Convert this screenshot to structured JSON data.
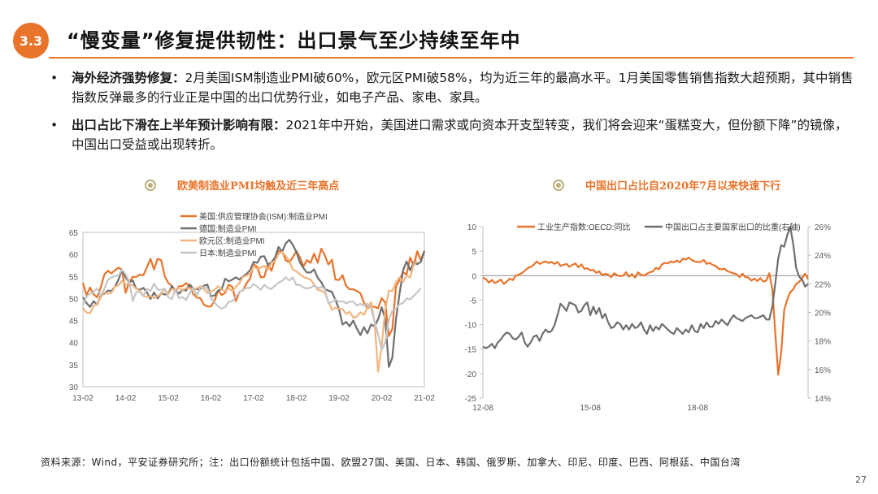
{
  "header": {
    "section": "3.3",
    "title": "“慢变量”修复提供韧性：出口景气至少持续至年中"
  },
  "bullets": [
    {
      "head": "海外经济强势修复：",
      "text": "2月美国ISM制造业PMI破60%，欧元区PMI破58%，均为近三年的最高水平。1月美国零售销售指数大超预期，其中销售指数反弹最多的行业正是中国的出口优势行业，如电子产品、家电、家具。"
    },
    {
      "head": "出口占比下滑在上半年预计影响有限：",
      "text": "2021年中开始，美国进口需求或向资本开支型转变，我们将会迎来“蛋糕变大，但份额下降”的镜像，中国出口受益或出现转折。"
    }
  ],
  "chart_data": [
    {
      "type": "line",
      "title": "欧美制造业PMI均触及近三年高点",
      "x_tick_labels": [
        "13-02",
        "14-02",
        "15-02",
        "16-02",
        "17-02",
        "18-02",
        "19-02",
        "20-02",
        "21-02"
      ],
      "x_start": "2013-02",
      "x_end": "2021-02",
      "ylim": [
        30,
        65
      ],
      "y_ticks": [
        30,
        35,
        40,
        45,
        50,
        55,
        60,
        65
      ],
      "legend_position": "top-left",
      "grid": false,
      "series": [
        {
          "name": "美国:供应管理协会(ISM):制造业PMI",
          "color": "#e8732a",
          "width": 2.2,
          "values": [
            53.5,
            50.8,
            52.5,
            51.0,
            50.3,
            52.5,
            55.4,
            56.3,
            55.7,
            56.4,
            57.0,
            56.5,
            51.3,
            53.7,
            54.9,
            54.9,
            55.4,
            55.3,
            57.1,
            59.0,
            56.6,
            59.0,
            58.7,
            55.1,
            53.5,
            52.9,
            51.5,
            52.8,
            52.8,
            53.5,
            52.7,
            51.1,
            50.2,
            50.1,
            48.6,
            48.2,
            48.2,
            49.5,
            51.8,
            50.8,
            51.3,
            53.2,
            52.6,
            49.4,
            51.5,
            51.9,
            53.5,
            54.5,
            57.7,
            57.2,
            54.8,
            54.9,
            57.8,
            56.3,
            58.8,
            60.8,
            60.8,
            58.7,
            58.2,
            59.3,
            60.8,
            59.3,
            57.3,
            58.7,
            58.1,
            60.2,
            58.1,
            61.3,
            59.8,
            57.7,
            58.8,
            54.3,
            54.2,
            55.3,
            52.8,
            52.1,
            52.1,
            51.7,
            51.2,
            49.1,
            47.8,
            48.3,
            48.1,
            47.8,
            50.1,
            49.1,
            41.5,
            43.1,
            52.6,
            54.2,
            56.0,
            55.4,
            59.3,
            57.5,
            60.7,
            58.7,
            60.8
          ]
        },
        {
          "name": "德国:制造业PMI",
          "color": "#6e6e6e",
          "width": 2.2,
          "values": [
            50.3,
            49.0,
            48.1,
            49.4,
            48.6,
            50.7,
            51.1,
            51.8,
            51.7,
            52.7,
            54.3,
            56.5,
            54.8,
            53.7,
            54.1,
            52.2,
            52.0,
            52.4,
            51.4,
            49.9,
            51.4,
            50.0,
            51.2,
            50.9,
            51.1,
            52.8,
            51.9,
            51.1,
            52.0,
            51.8,
            53.2,
            52.3,
            52.1,
            52.1,
            52.9,
            53.2,
            50.5,
            50.7,
            51.8,
            52.1,
            54.5,
            53.9,
            54.3,
            54.8,
            54.3,
            55.0,
            55.6,
            56.4,
            58.3,
            58.1,
            59.5,
            59.6,
            57.7,
            58.2,
            59.3,
            61.7,
            60.6,
            62.5,
            63.3,
            62.2,
            60.6,
            58.2,
            56.9,
            55.9,
            55.9,
            56.6,
            54.7,
            53.7,
            52.2,
            51.8,
            51.5,
            49.7,
            47.6,
            44.1,
            44.7,
            43.7,
            45.0,
            43.2,
            41.7,
            43.5,
            42.1,
            44.1,
            43.7,
            45.3,
            48.0,
            45.4,
            34.5,
            36.6,
            45.2,
            51.0,
            56.4,
            58.4,
            56.4,
            58.2,
            57.8,
            58.3,
            60.7
          ]
        },
        {
          "name": "欧元区:制造业PMI",
          "color": "#f3b47d",
          "width": 2.2,
          "values": [
            47.9,
            46.8,
            46.7,
            48.3,
            48.8,
            50.3,
            51.4,
            51.1,
            51.3,
            52.7,
            53.0,
            54.0,
            53.2,
            53.4,
            53.0,
            52.2,
            51.8,
            50.7,
            50.3,
            50.6,
            50.1,
            50.6,
            51.0,
            52.2,
            51.0,
            52.2,
            52.0,
            52.5,
            51.8,
            52.4,
            52.3,
            52.0,
            52.3,
            52.8,
            52.2,
            51.2,
            51.6,
            52.0,
            52.8,
            52.0,
            51.7,
            52.3,
            51.7,
            52.6,
            53.5,
            54.9,
            55.2,
            55.6,
            57.4,
            56.7,
            57.0,
            57.4,
            56.6,
            58.1,
            58.5,
            60.1,
            60.6,
            59.6,
            58.6,
            56.6,
            56.2,
            55.5,
            54.9,
            54.6,
            54.3,
            53.2,
            52.0,
            51.8,
            51.4,
            49.3,
            47.5,
            47.9,
            47.7,
            47.6,
            46.5,
            47.0,
            45.7,
            45.9,
            46.9,
            46.3,
            47.9,
            49.2,
            44.5,
            33.4,
            39.4,
            47.4,
            51.8,
            51.7,
            53.7,
            54.8,
            53.8,
            55.2,
            54.8,
            57.9,
            58.5
          ]
        },
        {
          "name": "日本:制造业PMI",
          "color": "#c6c6c6",
          "width": 2.2,
          "values": [
            48.5,
            50.4,
            51.1,
            51.5,
            52.3,
            50.7,
            52.2,
            54.2,
            54.8,
            55.1,
            55.2,
            56.6,
            55.5,
            53.9,
            49.4,
            51.5,
            51.5,
            50.5,
            52.2,
            51.7,
            53.4,
            52.0,
            52.0,
            52.2,
            50.3,
            49.9,
            52.0,
            50.1,
            50.3,
            49.7,
            51.2,
            52.5,
            50.6,
            52.4,
            52.6,
            52.3,
            50.1,
            49.1,
            48.2,
            47.7,
            48.1,
            49.3,
            49.4,
            50.4,
            51.4,
            52.0,
            52.4,
            52.4,
            53.3,
            52.7,
            52.0,
            53.1,
            52.4,
            52.2,
            52.9,
            53.6,
            54.0,
            54.8,
            54.1,
            54.8,
            53.1,
            53.1,
            52.5,
            52.3,
            52.5,
            52.9,
            52.4,
            52.6,
            52.2,
            48.9,
            49.2,
            49.8,
            49.3,
            49.4,
            48.9,
            49.3,
            49.3,
            48.4,
            48.8,
            48.4,
            48.8,
            47.8,
            44.8,
            41.9,
            38.4,
            40.1,
            45.2,
            47.2,
            47.7,
            48.7,
            49.0,
            50.0,
            49.8,
            50.6,
            51.4,
            52.4
          ]
        }
      ]
    },
    {
      "type": "line",
      "title": "中国出口占比自2020年7月以来快速下行",
      "x_tick_labels": [
        "12-08",
        "15-08",
        "18-08"
      ],
      "x_start": "2012-08",
      "x_end": "2021-01",
      "ylim_left": [
        -25,
        10
      ],
      "y_ticks_left": [
        -25,
        -20,
        -15,
        -10,
        -5,
        0,
        5,
        10
      ],
      "ylim_right": [
        14,
        26
      ],
      "y_ticks_right": [
        "14%",
        "16%",
        "18%",
        "20%",
        "22%",
        "24%",
        "26%"
      ],
      "legend_position": "top",
      "grid": false,
      "series": [
        {
          "name": "工业生产指数:OECD:同比",
          "axis": "left",
          "color": "#e8732a",
          "width": 2.2,
          "values": [
            -0.4,
            -0.7,
            -1.4,
            -0.9,
            -1.5,
            -1.2,
            -0.8,
            -1.7,
            -1.2,
            -0.6,
            -0.9,
            0.0,
            0.2,
            0.5,
            1.0,
            1.5,
            1.8,
            2.2,
            2.9,
            2.4,
            2.7,
            2.9,
            2.6,
            2.8,
            2.4,
            2.8,
            2.0,
            2.2,
            2.4,
            1.8,
            2.2,
            2.5,
            1.7,
            2.3,
            1.4,
            1.5,
            1.1,
            1.2,
            0.6,
            0.9,
            0.1,
            0.4,
            0.2,
            -0.3,
            0.5,
            0.1,
            -0.1,
            0.0,
            0.7,
            -0.2,
            0.3,
            -0.4,
            0.7,
            0.2,
            0.0,
            0.4,
            0.7,
            0.9,
            1.6,
            1.3,
            2.3,
            2.6,
            2.5,
            2.9,
            2.7,
            3.1,
            2.7,
            3.5,
            3.3,
            3.7,
            3.2,
            2.9,
            2.8,
            2.8,
            3.2,
            2.4,
            2.6,
            2.2,
            2.0,
            1.4,
            1.3,
            1.4,
            0.9,
            0.7,
            0.5,
            0.3,
            -0.3,
            0.4,
            -0.3,
            -0.4,
            -1.0,
            -0.6,
            -1.1,
            -0.5,
            -1.2,
            -1.0,
            0.5,
            -2.7,
            -11.6,
            -20.2,
            -15.6,
            -7.0,
            -4.9,
            -3.4,
            -2.8,
            -1.7,
            -1.3,
            -0.5,
            0.4,
            -0.7
          ]
        },
        {
          "name": "中国出口占主要国家出口的比重(右轴)",
          "axis": "right",
          "color": "#6e6e6e",
          "width": 2.2,
          "values": [
            17.6,
            17.5,
            17.6,
            17.8,
            17.5,
            17.9,
            18.1,
            18.4,
            18.6,
            18.5,
            18.2,
            18.1,
            18.3,
            18.6,
            17.9,
            17.6,
            17.9,
            18.3,
            18.4,
            18.0,
            18.5,
            18.8,
            18.6,
            18.7,
            19.1,
            19.8,
            20.6,
            20.4,
            20.1,
            20.7,
            20.6,
            20.5,
            20.0,
            20.1,
            20.5,
            20.7,
            19.8,
            20.4,
            19.9,
            20.3,
            19.6,
            19.9,
            19.3,
            18.9,
            19.0,
            19.3,
            19.2,
            18.8,
            19.1,
            18.8,
            19.2,
            18.9,
            19.0,
            19.3,
            18.8,
            18.5,
            19.1,
            18.7,
            19.0,
            18.8,
            19.2,
            19.0,
            18.8,
            18.6,
            18.5,
            18.9,
            18.7,
            18.5,
            18.8,
            18.6,
            19.1,
            18.7,
            18.6,
            19.2,
            18.9,
            19.3,
            19.0,
            19.0,
            19.4,
            19.2,
            19.5,
            19.3,
            19.1,
            19.5,
            19.8,
            19.6,
            19.5,
            19.4,
            19.6,
            19.7,
            19.8,
            19.6,
            19.6,
            19.7,
            19.8,
            19.5,
            19.5,
            20.4,
            22.0,
            23.8,
            24.7,
            24.6,
            25.4,
            26.0,
            24.8,
            23.1,
            22.5,
            22.3,
            21.8,
            22.0
          ]
        }
      ]
    }
  ],
  "footer": {
    "source": "资料来源：Wind，平安证券研究所；注：出口份额统计包括中国、欧盟27国、美国、日本、韩国、俄罗斯、加拿大、印尼、印度、巴西、阿根廷、中国台湾",
    "page": "27"
  }
}
